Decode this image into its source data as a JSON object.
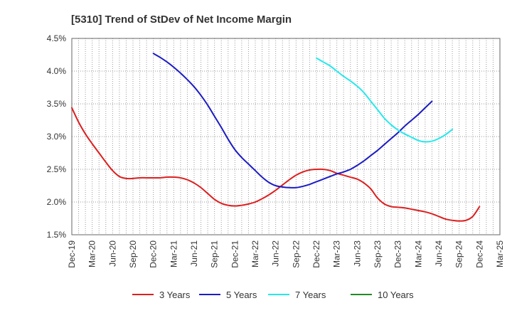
{
  "chart_data": {
    "type": "line",
    "title": "[5310]  Trend of StDev of Net Income Margin",
    "xlabel": "",
    "ylabel": "",
    "x_ticks": [
      "Dec-19",
      "Mar-20",
      "Jun-20",
      "Sep-20",
      "Dec-20",
      "Mar-21",
      "Jun-21",
      "Sep-21",
      "Dec-21",
      "Mar-22",
      "Jun-22",
      "Sep-22",
      "Dec-22",
      "Mar-23",
      "Jun-23",
      "Sep-23",
      "Dec-23",
      "Mar-24",
      "Jun-24",
      "Sep-24",
      "Dec-24",
      "Mar-25"
    ],
    "y_ticks": [
      "1.5%",
      "2.0%",
      "2.5%",
      "3.0%",
      "3.5%",
      "4.0%",
      "4.5%"
    ],
    "ylim": [
      1.5,
      4.5
    ],
    "grid": true,
    "legend_position": "bottom",
    "series": [
      {
        "name": "3 Years",
        "color": "#dd1f1f",
        "start_index": 0,
        "values": [
          3.44,
          3.22,
          3.04,
          2.89,
          2.75,
          2.61,
          2.48,
          2.39,
          2.36,
          2.36,
          2.37,
          2.37,
          2.37,
          2.37,
          2.38,
          2.38,
          2.37,
          2.34,
          2.29,
          2.22,
          2.13,
          2.04,
          1.98,
          1.95,
          1.94,
          1.95,
          1.97,
          2.0,
          2.05,
          2.11,
          2.18,
          2.26,
          2.34,
          2.41,
          2.46,
          2.49,
          2.5,
          2.5,
          2.48,
          2.44,
          2.41,
          2.38,
          2.35,
          2.29,
          2.2,
          2.06,
          1.97,
          1.93,
          1.92,
          1.91,
          1.89,
          1.87,
          1.85,
          1.82,
          1.78,
          1.74,
          1.72,
          1.71,
          1.72,
          1.78,
          1.93
        ]
      },
      {
        "name": "5 Years",
        "color": "#1c1cc4",
        "start_index": 12,
        "values": [
          4.27,
          4.21,
          4.14,
          4.06,
          3.97,
          3.87,
          3.76,
          3.63,
          3.48,
          3.31,
          3.14,
          2.96,
          2.8,
          2.68,
          2.58,
          2.48,
          2.38,
          2.3,
          2.25,
          2.23,
          2.22,
          2.22,
          2.24,
          2.27,
          2.31,
          2.35,
          2.39,
          2.43,
          2.46,
          2.5,
          2.56,
          2.63,
          2.71,
          2.79,
          2.88,
          2.97,
          3.06,
          3.16,
          3.25,
          3.34,
          3.44,
          3.54
        ]
      },
      {
        "name": "7 Years",
        "color": "#26e8ec",
        "start_index": 36,
        "values": [
          4.2,
          4.14,
          4.08,
          4.0,
          3.92,
          3.85,
          3.77,
          3.67,
          3.54,
          3.41,
          3.28,
          3.18,
          3.1,
          3.04,
          2.99,
          2.94,
          2.92,
          2.93,
          2.97,
          3.03,
          3.11
        ]
      },
      {
        "name": "10 Years",
        "color": "#228b22",
        "start_index": 0,
        "values": []
      }
    ]
  }
}
